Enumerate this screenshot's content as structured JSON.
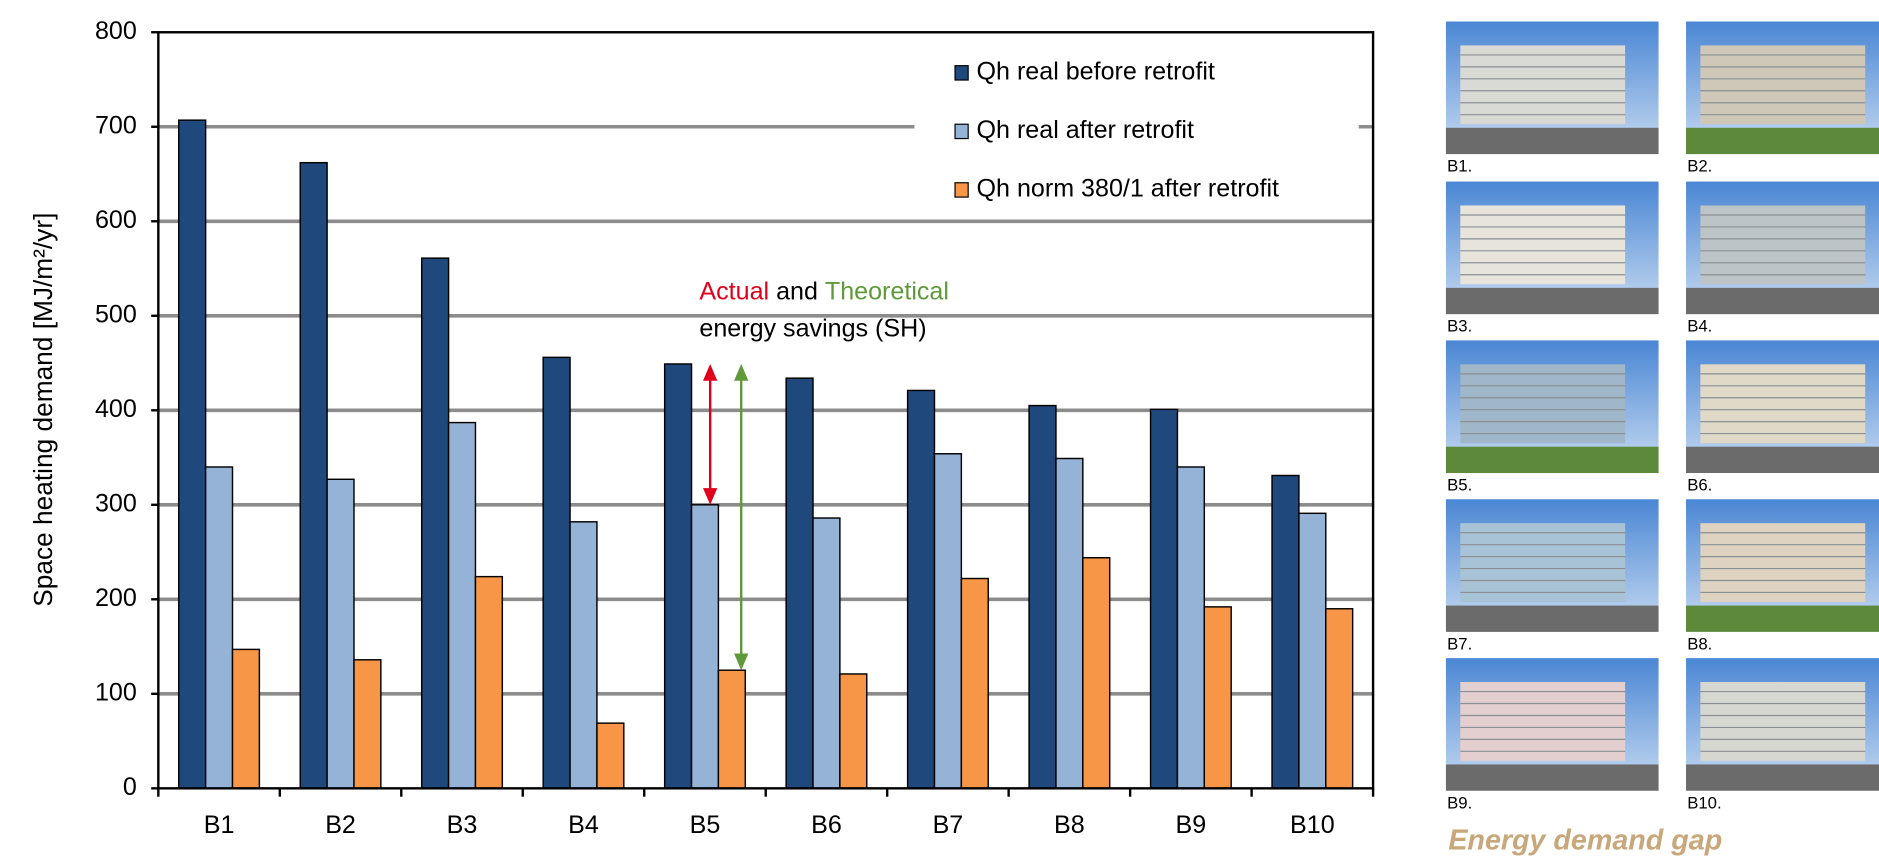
{
  "chart_data": {
    "type": "bar",
    "ylabel": "Space heating demand [MJ/m²/yr]",
    "categories": [
      "B1",
      "B2",
      "B3",
      "B4",
      "B5",
      "B6",
      "B7",
      "B8",
      "B9",
      "B10"
    ],
    "series": [
      {
        "name": "Qh real before retrofit",
        "color": "#1f497d",
        "values": [
          707,
          662,
          561,
          456,
          449,
          434,
          421,
          405,
          401,
          331
        ]
      },
      {
        "name": "Qh real after retrofit",
        "color": "#95b3d7",
        "values": [
          340,
          327,
          387,
          282,
          300,
          286,
          354,
          349,
          340,
          291
        ]
      },
      {
        "name": "Qh norm 380/1 after retrofit",
        "color": "#f79646",
        "values": [
          147,
          136,
          224,
          69,
          125,
          121,
          222,
          244,
          192,
          190
        ]
      }
    ],
    "ylim": [
      0,
      800
    ],
    "yticks": [
      0,
      100,
      200,
      300,
      400,
      500,
      600,
      700,
      800
    ],
    "grid": true,
    "legend": "upper right",
    "annotation": {
      "line1": [
        {
          "text": "Actual",
          "color": "#e0001b"
        },
        {
          "text": "and",
          "color": "#000000"
        },
        {
          "text": "Theoretical",
          "color": "#5f9a3a"
        }
      ],
      "line2": "energy savings (SH)"
    }
  },
  "photos": {
    "captions": [
      "B1.",
      "B2.",
      "B3.",
      "B4.",
      "B5.",
      "B6.",
      "B7.",
      "B8.",
      "B9.",
      "B10."
    ],
    "title": "Energy demand gap"
  }
}
